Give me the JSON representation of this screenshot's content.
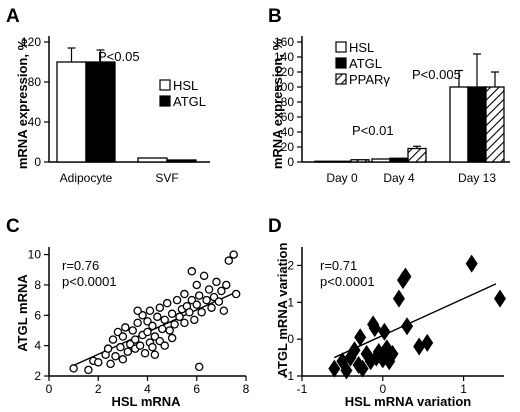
{
  "chart_data": [
    {
      "panel": "A",
      "type": "bar",
      "categories": [
        "Adipocyte",
        "SVF"
      ],
      "series": [
        {
          "name": "HSL",
          "values": [
            100,
            4
          ],
          "errors": [
            14,
            1
          ],
          "fill": "#ffffff"
        },
        {
          "name": "ATGL",
          "values": [
            100,
            2
          ],
          "errors": [
            12,
            0.5
          ],
          "fill": "#000000"
        }
      ],
      "ylabel": "mRNA expression, %",
      "ylim": [
        0,
        120
      ],
      "yticks": [
        0,
        40,
        80,
        120
      ],
      "annotations": [
        {
          "text": "P<0.05"
        }
      ],
      "legend": "right"
    },
    {
      "panel": "B",
      "type": "bar",
      "categories": [
        "Day 0",
        "Day 4",
        "Day 13"
      ],
      "series": [
        {
          "name": "HSL",
          "values": [
            1,
            4,
            100
          ],
          "errors": [
            0.3,
            1,
            22
          ],
          "fill": "#ffffff"
        },
        {
          "name": "ATGL",
          "values": [
            1,
            5,
            100
          ],
          "errors": [
            0.3,
            1,
            44
          ],
          "fill": "#000000"
        },
        {
          "name": "PPARγ",
          "values": [
            3,
            18,
            100
          ],
          "errors": [
            0.5,
            3,
            20
          ],
          "fill": "hatch"
        }
      ],
      "ylabel": "mRNA expression, %",
      "ylim": [
        0,
        160
      ],
      "yticks": [
        0,
        20,
        40,
        60,
        80,
        100,
        120,
        140,
        160
      ],
      "annotations": [
        {
          "text": "P<0.01"
        },
        {
          "text": "P<0.005"
        }
      ],
      "legend": "top-left"
    },
    {
      "panel": "C",
      "type": "scatter",
      "marker": "open-circle",
      "xlabel": "HSL mRNA",
      "ylabel": "ATGL mRNA",
      "xlim": [
        0,
        8
      ],
      "ylim": [
        2,
        10.5
      ],
      "xticks": [
        0,
        2,
        4,
        6,
        8
      ],
      "yticks": [
        2,
        4,
        6,
        8,
        10
      ],
      "stats": [
        "r=0.76",
        "p<0.0001"
      ],
      "fit": {
        "x": [
          1.0,
          7.7
        ],
        "y": [
          2.7,
          7.6
        ]
      },
      "points": [
        [
          1.0,
          2.5
        ],
        [
          1.6,
          2.4
        ],
        [
          1.8,
          3.0
        ],
        [
          2.0,
          2.9
        ],
        [
          2.3,
          3.4
        ],
        [
          2.4,
          3.8
        ],
        [
          2.6,
          4.4
        ],
        [
          2.7,
          3.3
        ],
        [
          2.8,
          4.9
        ],
        [
          2.9,
          3.9
        ],
        [
          3.0,
          4.6
        ],
        [
          3.0,
          3.1
        ],
        [
          3.1,
          5.2
        ],
        [
          3.2,
          3.6
        ],
        [
          3.3,
          4.1
        ],
        [
          3.4,
          5.0
        ],
        [
          3.5,
          3.8
        ],
        [
          3.5,
          4.4
        ],
        [
          3.6,
          5.5
        ],
        [
          3.7,
          4.0
        ],
        [
          3.8,
          6.0
        ],
        [
          3.8,
          4.7
        ],
        [
          3.9,
          3.5
        ],
        [
          4.0,
          4.9
        ],
        [
          4.0,
          5.6
        ],
        [
          4.1,
          6.3
        ],
        [
          4.1,
          4.2
        ],
        [
          4.2,
          3.9
        ],
        [
          4.2,
          5.3
        ],
        [
          4.3,
          4.6
        ],
        [
          4.4,
          5.9
        ],
        [
          4.5,
          4.3
        ],
        [
          4.5,
          6.5
        ],
        [
          4.6,
          5.1
        ],
        [
          4.7,
          4.0
        ],
        [
          4.7,
          5.7
        ],
        [
          4.8,
          6.8
        ],
        [
          4.9,
          5.0
        ],
        [
          5.0,
          4.5
        ],
        [
          5.0,
          6.1
        ],
        [
          5.1,
          5.4
        ],
        [
          5.2,
          7.0
        ],
        [
          5.3,
          5.9
        ],
        [
          5.4,
          6.4
        ],
        [
          5.5,
          7.4
        ],
        [
          5.5,
          5.5
        ],
        [
          5.6,
          6.6
        ],
        [
          5.7,
          6.2
        ],
        [
          5.8,
          7.0
        ],
        [
          5.9,
          5.7
        ],
        [
          6.0,
          6.7
        ],
        [
          6.0,
          8.0
        ],
        [
          6.1,
          7.3
        ],
        [
          6.2,
          6.2
        ],
        [
          6.3,
          8.6
        ],
        [
          6.4,
          7.0
        ],
        [
          6.5,
          7.7
        ],
        [
          6.6,
          6.5
        ],
        [
          6.7,
          7.2
        ],
        [
          6.8,
          8.2
        ],
        [
          6.9,
          6.9
        ],
        [
          7.0,
          7.6
        ],
        [
          7.1,
          6.3
        ],
        [
          7.2,
          8.0
        ],
        [
          7.3,
          9.6
        ],
        [
          7.5,
          10.0
        ],
        [
          7.6,
          7.4
        ],
        [
          6.1,
          2.6
        ],
        [
          4.3,
          3.4
        ],
        [
          2.5,
          2.8
        ],
        [
          5.8,
          8.9
        ],
        [
          3.6,
          6.3
        ]
      ]
    },
    {
      "panel": "D",
      "type": "scatter",
      "marker": "filled-diamond",
      "xlabel": "HSL mRNA variation",
      "ylabel": "ATGL mRNA variation",
      "xlim": [
        -1,
        1.5
      ],
      "ylim": [
        -1,
        2.5
      ],
      "xticks": [
        -1,
        0,
        1
      ],
      "yticks": [
        -1,
        0,
        1,
        2
      ],
      "stats": [
        "r=0.71",
        "p<0.0001"
      ],
      "fit": {
        "x": [
          -0.6,
          1.4
        ],
        "y": [
          -0.5,
          1.5
        ]
      },
      "points": [
        [
          -0.6,
          -0.8
        ],
        [
          -0.5,
          -0.6
        ],
        [
          -0.45,
          -0.85
        ],
        [
          -0.4,
          -0.5
        ],
        [
          -0.35,
          -0.3
        ],
        [
          -0.3,
          -0.7
        ],
        [
          -0.28,
          0.05
        ],
        [
          -0.25,
          -0.8
        ],
        [
          -0.2,
          -0.4
        ],
        [
          -0.15,
          -0.6
        ],
        [
          -0.12,
          0.4
        ],
        [
          -0.1,
          0.3
        ],
        [
          -0.08,
          -0.5
        ],
        [
          -0.05,
          -0.35
        ],
        [
          0.0,
          -0.55
        ],
        [
          0.02,
          0.2
        ],
        [
          0.05,
          -0.25
        ],
        [
          0.08,
          -0.6
        ],
        [
          0.12,
          -0.4
        ],
        [
          0.2,
          1.1
        ],
        [
          0.25,
          1.6
        ],
        [
          0.28,
          1.7
        ],
        [
          0.3,
          0.35
        ],
        [
          0.45,
          -0.2
        ],
        [
          0.55,
          -0.1
        ],
        [
          1.1,
          2.05
        ],
        [
          1.45,
          1.1
        ]
      ]
    }
  ]
}
